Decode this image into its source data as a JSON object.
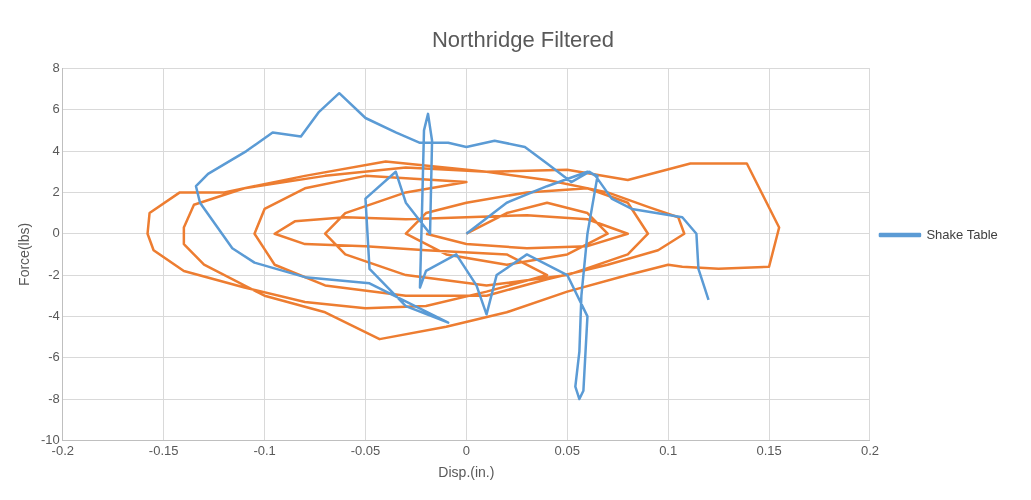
{
  "chart_data": {
    "type": "line",
    "title": "Northridge Filtered",
    "xlabel": "Disp.(in.)",
    "ylabel": "Force(lbs)",
    "xlim": [
      -0.2,
      0.2
    ],
    "xticks": [
      -0.2,
      -0.15,
      -0.1,
      -0.05,
      0,
      0.05,
      0.1,
      0.15,
      0.2
    ],
    "ylim": [
      -10,
      8
    ],
    "yticks": [
      -10,
      -8,
      -6,
      -4,
      -2,
      0,
      2,
      4,
      6,
      8
    ],
    "grid": true,
    "legend": "right",
    "series": [
      {
        "name": "Shake Table",
        "color": "#5b9bd5",
        "x": [
          0,
          0.02,
          0.04,
          0.06,
          0.065,
          0.06,
          0.057,
          0.056,
          0.054,
          0.056,
          0.058,
          0.06,
          0.05,
          0.03,
          0.015,
          0.01,
          0.005,
          -0.005,
          -0.02,
          -0.023,
          -0.022,
          -0.021,
          -0.019,
          -0.017,
          -0.018,
          -0.03,
          -0.035,
          -0.05,
          -0.048,
          -0.03,
          -0.009,
          -0.048,
          -0.08,
          -0.105,
          -0.116,
          -0.132,
          -0.134,
          -0.128,
          -0.109,
          -0.096,
          -0.082,
          -0.073,
          -0.063,
          -0.05,
          -0.035,
          -0.023,
          -0.009,
          0,
          0.014,
          0.029,
          0.04,
          0.052,
          0.061,
          0.064,
          0.072,
          0.082,
          0.107,
          0.114,
          0.115,
          0.118,
          0.12
        ],
        "values": [
          0,
          1.5,
          2.3,
          3,
          2.8,
          0,
          -3,
          -5.7,
          -7.4,
          -8,
          -7.6,
          -4,
          -2,
          -1,
          -2,
          -3.9,
          -2.5,
          -1,
          -1.8,
          -2.6,
          1,
          5,
          5.8,
          4.5,
          0,
          1.5,
          3,
          1.7,
          -1.7,
          -3.5,
          -4.3,
          -2.4,
          -2.1,
          -1.4,
          -0.7,
          1.5,
          2.3,
          2.9,
          4,
          4.9,
          4.7,
          5.9,
          6.8,
          5.6,
          4.9,
          4.4,
          4.4,
          4.2,
          4.5,
          4.2,
          3.4,
          2.5,
          3,
          2.8,
          1.7,
          1.2,
          0.8,
          0,
          -1.7,
          -2.6,
          -3.2
        ]
      },
      {
        "color": "#ed7d31",
        "x": [
          0,
          0.02,
          0.04,
          0.06,
          0.07,
          0.05,
          0.02,
          -0.01,
          -0.03,
          -0.02,
          0,
          0.03,
          0.06,
          0.08,
          0.09,
          0.08,
          0.05,
          0.01,
          -0.03,
          -0.06,
          -0.07,
          -0.06,
          -0.03,
          0,
          -0.05,
          -0.08,
          -0.1,
          -0.105,
          -0.095,
          -0.07,
          -0.03,
          0.01,
          0.04,
          0.07,
          0.095,
          0.108,
          0.105,
          0.09,
          0.07,
          0.04,
          0.01,
          -0.03,
          -0.07,
          -0.11,
          -0.135,
          -0.14,
          -0.14,
          -0.13,
          -0.1,
          -0.07,
          -0.043,
          -0.01,
          0.02,
          0.05,
          0.08,
          0.1,
          0.107,
          0.125,
          0.15,
          0.155,
          0.139,
          0.111,
          0.08,
          0.05,
          0.01,
          -0.04,
          -0.08,
          -0.12,
          -0.142,
          -0.157,
          -0.158,
          -0.155,
          -0.14,
          -0.11,
          -0.08,
          -0.05,
          -0.02,
          0.01,
          0.04,
          0.02,
          -0.02,
          -0.05,
          -0.08,
          -0.095,
          -0.085,
          -0.06,
          -0.03,
          0,
          0.03,
          0.06,
          0.08,
          0.06,
          0.03,
          0,
          -0.02
        ],
        "values": [
          0,
          1,
          1.5,
          1,
          0,
          -1,
          -1.5,
          -1,
          0,
          1,
          1.5,
          2,
          2.2,
          1.5,
          0,
          -1,
          -2,
          -2.5,
          -2,
          -1,
          0,
          1,
          2,
          2.5,
          2.8,
          2.2,
          1.2,
          0,
          -1.5,
          -2.5,
          -3,
          -3,
          -2.2,
          -1.5,
          -0.8,
          0,
          0.8,
          1.3,
          2,
          2.6,
          3,
          3.2,
          2.8,
          2.2,
          1.4,
          0.3,
          -0.5,
          -1.5,
          -3,
          -3.8,
          -5.1,
          -4.5,
          -3.8,
          -2.8,
          -2,
          -1.5,
          -1.6,
          -1.7,
          -1.6,
          0.3,
          3.4,
          3.4,
          2.6,
          3.1,
          3,
          3.5,
          2.8,
          2,
          2,
          1,
          0,
          -0.8,
          -1.8,
          -2.6,
          -3.3,
          -3.6,
          -3.5,
          -2.8,
          -2,
          -1,
          -0.8,
          -0.6,
          -0.5,
          0,
          0.6,
          0.8,
          0.7,
          0.8,
          0.9,
          0.7,
          0,
          -0.6,
          -0.7,
          -0.5,
          0
        ]
      }
    ]
  }
}
